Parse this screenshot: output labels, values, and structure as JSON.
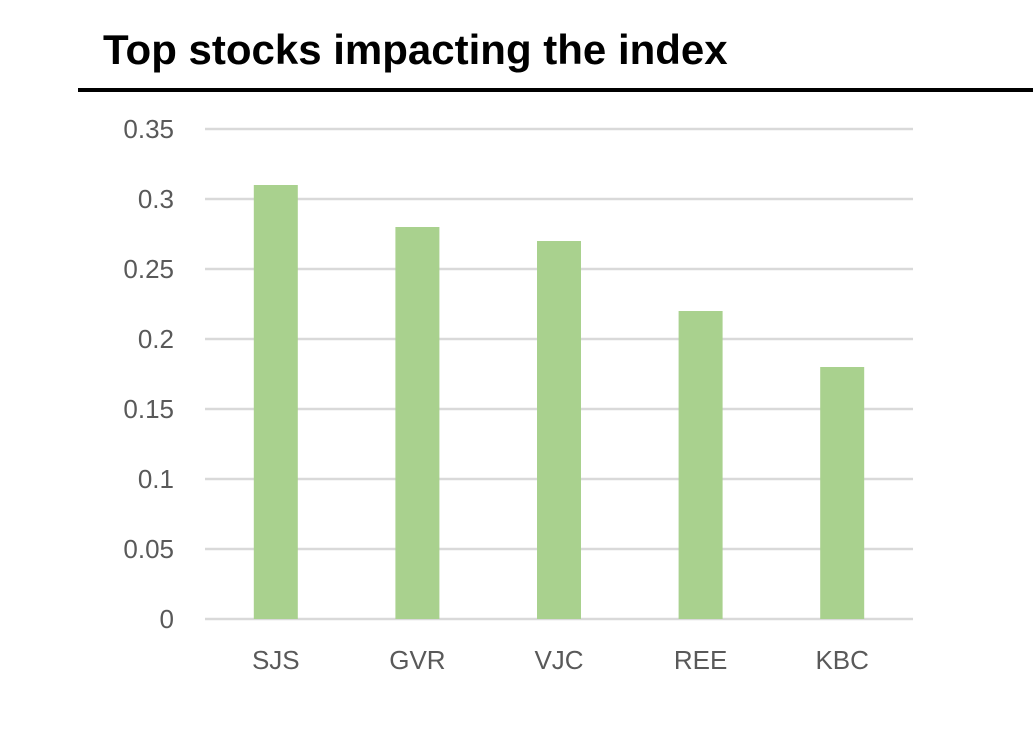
{
  "chart_data": {
    "type": "bar",
    "title": "Top stocks impacting the index",
    "categories": [
      "SJS",
      "GVR",
      "VJC",
      "REE",
      "KBC"
    ],
    "values": [
      0.31,
      0.28,
      0.27,
      0.22,
      0.18
    ],
    "ylim": [
      0,
      0.35
    ],
    "yticks": [
      0,
      0.05,
      0.1,
      0.15,
      0.2,
      0.25,
      0.3,
      0.35
    ],
    "ytick_labels": [
      "0",
      "0.05",
      "0.1",
      "0.15",
      "0.2",
      "0.25",
      "0.3",
      "0.35"
    ],
    "xlabel": "",
    "ylabel": "",
    "grid": true,
    "legend": "none",
    "colors": {
      "bar": "#a9d18e",
      "grid": "#d9d9d9",
      "tick_text": "#595959",
      "title": "#000000"
    }
  }
}
